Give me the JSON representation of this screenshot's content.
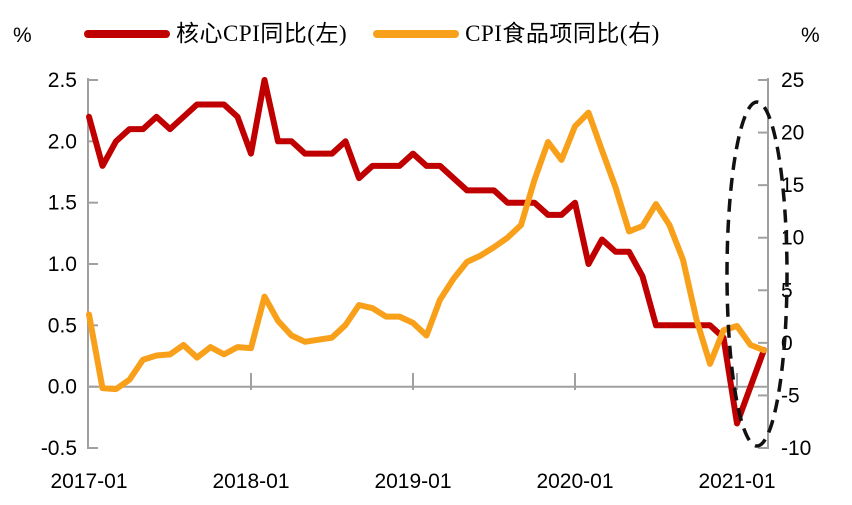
{
  "units": {
    "left": "%",
    "right": "%"
  },
  "legend": {
    "items": [
      {
        "label": "核心CPI同比(左)",
        "color": "#C00000"
      },
      {
        "label": "CPI食品项同比(右)",
        "color": "#F9A01B"
      }
    ]
  },
  "colors": {
    "core_line": "#C00000",
    "food_line": "#F9A01B",
    "axis": "#A0A0A0",
    "annotation": "#111111",
    "background": "#FFFFFF"
  },
  "annotation": {
    "shape": "dashed-ellipse",
    "around": "2021-01 region (recent CPI plunge)"
  },
  "chart_data": {
    "type": "line",
    "title": "",
    "xlabel": "",
    "ylabel_left": "%",
    "ylabel_right": "%",
    "grid": false,
    "legend_position": "top",
    "x": [
      "2017-01",
      "2017-02",
      "2017-03",
      "2017-04",
      "2017-05",
      "2017-06",
      "2017-07",
      "2017-08",
      "2017-09",
      "2017-10",
      "2017-11",
      "2017-12",
      "2018-01",
      "2018-02",
      "2018-03",
      "2018-04",
      "2018-05",
      "2018-06",
      "2018-07",
      "2018-08",
      "2018-09",
      "2018-10",
      "2018-11",
      "2018-12",
      "2019-01",
      "2019-02",
      "2019-03",
      "2019-04",
      "2019-05",
      "2019-06",
      "2019-07",
      "2019-08",
      "2019-09",
      "2019-10",
      "2019-11",
      "2019-12",
      "2020-01",
      "2020-02",
      "2020-03",
      "2020-04",
      "2020-05",
      "2020-06",
      "2020-07",
      "2020-08",
      "2020-09",
      "2020-10",
      "2020-11",
      "2020-12",
      "2021-01",
      "2021-02",
      "2021-03"
    ],
    "x_ticks": [
      "2017-01",
      "2018-01",
      "2019-01",
      "2020-01",
      "2021-01"
    ],
    "left_axis": {
      "min": -0.5,
      "max": 2.5,
      "ticks": [
        "2.5",
        "2.0",
        "1.5",
        "1.0",
        "0.5",
        "0.0",
        "-0.5"
      ],
      "unit": "%"
    },
    "right_axis": {
      "min": -10,
      "max": 25,
      "ticks": [
        "25",
        "20",
        "15",
        "10",
        "5",
        "0",
        "-5",
        "-10"
      ],
      "unit": "%"
    },
    "series": [
      {
        "name": "核心CPI同比(左)",
        "axis": "left",
        "color": "#C00000",
        "values": [
          2.2,
          1.8,
          2.0,
          2.1,
          2.1,
          2.2,
          2.1,
          2.2,
          2.3,
          2.3,
          2.3,
          2.2,
          1.9,
          2.5,
          2.0,
          2.0,
          1.9,
          1.9,
          1.9,
          2.0,
          1.7,
          1.8,
          1.8,
          1.8,
          1.9,
          1.8,
          1.8,
          1.7,
          1.6,
          1.6,
          1.6,
          1.5,
          1.5,
          1.5,
          1.4,
          1.4,
          1.5,
          1.0,
          1.2,
          1.1,
          1.1,
          0.9,
          0.5,
          0.5,
          0.5,
          0.5,
          0.5,
          0.4,
          -0.3,
          0.0,
          0.3
        ]
      },
      {
        "name": "CPI食品项同比(右)",
        "axis": "right",
        "color": "#F9A01B",
        "values": [
          2.7,
          -4.3,
          -4.4,
          -3.5,
          -1.6,
          -1.2,
          -1.1,
          -0.2,
          -1.4,
          -0.4,
          -1.1,
          -0.4,
          -0.5,
          4.4,
          2.1,
          0.7,
          0.1,
          0.3,
          0.5,
          1.7,
          3.6,
          3.3,
          2.5,
          2.5,
          1.9,
          0.7,
          4.1,
          6.1,
          7.7,
          8.3,
          9.1,
          10.0,
          11.2,
          15.5,
          19.1,
          17.4,
          20.6,
          21.9,
          18.3,
          14.8,
          10.6,
          11.1,
          13.2,
          11.2,
          7.9,
          2.2,
          -2.0,
          1.2,
          1.6,
          -0.2,
          -0.7
        ]
      }
    ]
  }
}
